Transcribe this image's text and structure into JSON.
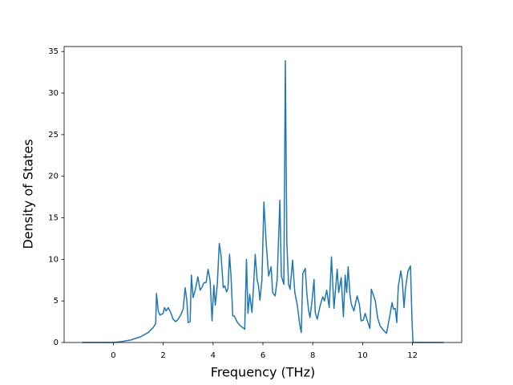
{
  "chart_data": {
    "type": "line",
    "xlabel": "Frequency (THz)",
    "ylabel": "Density of States",
    "x": [
      -1.25,
      0,
      0.3,
      0.7,
      1.1,
      1.4,
      1.6,
      1.7,
      1.73,
      1.8,
      1.87,
      2.0,
      2.05,
      2.12,
      2.2,
      2.3,
      2.4,
      2.5,
      2.6,
      2.7,
      2.8,
      2.88,
      2.95,
      3.0,
      3.08,
      3.13,
      3.2,
      3.3,
      3.39,
      3.48,
      3.55,
      3.64,
      3.72,
      3.8,
      3.88,
      3.96,
      4.03,
      4.09,
      4.17,
      4.25,
      4.32,
      4.41,
      4.47,
      4.54,
      4.6,
      4.66,
      4.72,
      4.79,
      4.85,
      4.98,
      5.1,
      5.27,
      5.34,
      5.4,
      5.47,
      5.56,
      5.62,
      5.69,
      5.77,
      5.82,
      5.88,
      5.96,
      6.04,
      6.13,
      6.23,
      6.33,
      6.39,
      6.49,
      6.57,
      6.68,
      6.74,
      6.84,
      6.9,
      6.96,
      7.03,
      7.09,
      7.19,
      7.28,
      7.38,
      7.48,
      7.54,
      7.6,
      7.7,
      7.76,
      7.83,
      7.89,
      7.97,
      8.05,
      8.1,
      8.18,
      8.3,
      8.4,
      8.47,
      8.56,
      8.66,
      8.75,
      8.85,
      8.98,
      9.04,
      9.14,
      9.23,
      9.3,
      9.36,
      9.42,
      9.49,
      9.55,
      9.65,
      9.78,
      9.87,
      9.94,
      10.03,
      10.1,
      10.19,
      10.29,
      10.35,
      10.51,
      10.6,
      10.7,
      10.83,
      10.96,
      11.09,
      11.18,
      11.24,
      11.31,
      11.37,
      11.43,
      11.53,
      11.59,
      11.66,
      11.72,
      11.82,
      11.92,
      11.98,
      12.02,
      13.25
    ],
    "values": [
      0,
      0,
      0.1,
      0.3,
      0.7,
      1.2,
      1.8,
      2.3,
      5.9,
      3.8,
      3.3,
      3.5,
      4.2,
      3.8,
      4.2,
      3.6,
      2.8,
      2.5,
      2.8,
      3.3,
      4.0,
      6.6,
      5.0,
      2.4,
      2.5,
      8.1,
      5.4,
      6.5,
      7.9,
      6.3,
      6.6,
      7.2,
      7.2,
      8.8,
      7.5,
      2.6,
      6.9,
      4.5,
      7.0,
      11.9,
      10.5,
      6.6,
      6.8,
      6.1,
      6.5,
      10.6,
      8.0,
      3.2,
      3.2,
      2.4,
      2.0,
      1.6,
      10.0,
      3.5,
      5.8,
      3.6,
      6.5,
      10.6,
      7.5,
      6.9,
      5.1,
      7.5,
      16.9,
      12.0,
      8.0,
      9.1,
      6.0,
      5.6,
      7.5,
      17.1,
      8.0,
      7.0,
      33.9,
      12.0,
      7.0,
      6.4,
      9.9,
      6.0,
      4.5,
      2.1,
      1.2,
      8.3,
      8.9,
      6.0,
      3.9,
      3.0,
      5.0,
      7.6,
      3.6,
      2.8,
      4.5,
      5.5,
      5.0,
      6.3,
      4.2,
      10.3,
      4.1,
      8.8,
      6.0,
      7.8,
      3.1,
      8.1,
      6.0,
      9.1,
      5.8,
      4.6,
      3.8,
      5.6,
      4.6,
      2.6,
      2.7,
      3.5,
      2.6,
      1.7,
      6.4,
      5.0,
      3.0,
      2.0,
      1.5,
      1.1,
      3.2,
      4.8,
      4.0,
      4.1,
      2.4,
      6.7,
      8.6,
      7.5,
      4.2,
      6.5,
      8.6,
      9.2,
      2.8,
      0,
      0
    ],
    "color": "#1f77b4",
    "xlim": [
      -1.975,
      13.975
    ],
    "xticks": [
      0,
      2,
      4,
      6,
      8,
      10,
      12
    ],
    "ylim": [
      0,
      35.6
    ],
    "yticks": [
      0,
      5,
      10,
      15,
      20,
      25,
      30,
      35
    ]
  }
}
